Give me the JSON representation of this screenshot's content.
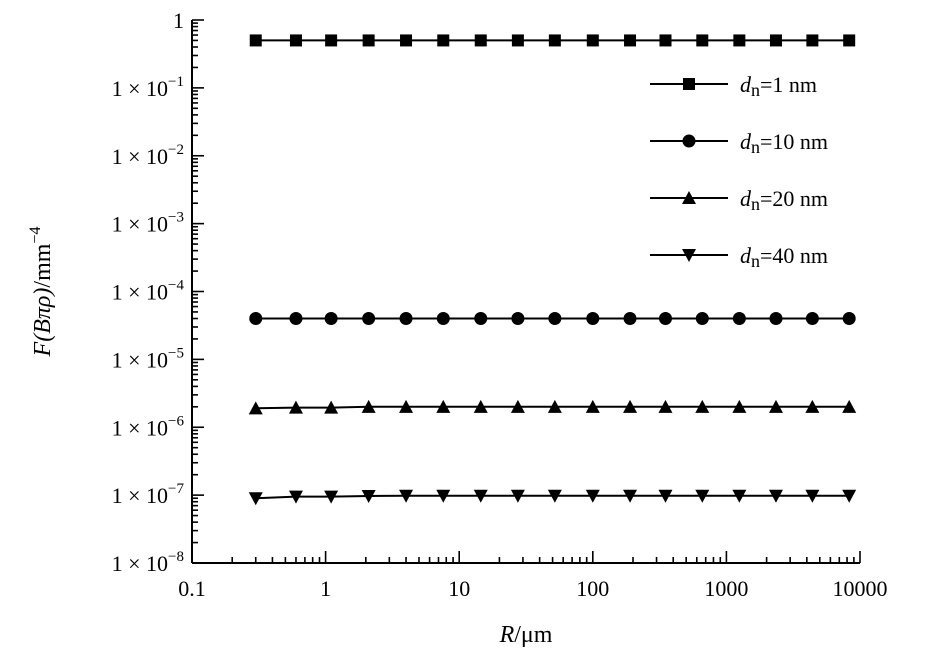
{
  "chart_data": {
    "type": "line",
    "xscale": "log",
    "yscale": "log",
    "xlim": [
      0.1,
      10000
    ],
    "ylim": [
      1e-08,
      1
    ],
    "xlabel": "R/μm",
    "ylabel": "F(Bπρ)/mm⁻⁴",
    "x_ticks": [
      {
        "value": 0.1,
        "label": "0.1"
      },
      {
        "value": 1,
        "label": "1"
      },
      {
        "value": 10,
        "label": "10"
      },
      {
        "value": 100,
        "label": "100"
      },
      {
        "value": 1000,
        "label": "1000"
      },
      {
        "value": 10000,
        "label": "10000"
      }
    ],
    "y_ticks": [
      {
        "value": 1,
        "mant": "1",
        "exp": ""
      },
      {
        "value": 0.1,
        "mant": "1 × 10",
        "exp": "−1"
      },
      {
        "value": 0.01,
        "mant": "1 × 10",
        "exp": "−2"
      },
      {
        "value": 0.001,
        "mant": "1 × 10",
        "exp": "−3"
      },
      {
        "value": 0.0001,
        "mant": "1 × 10",
        "exp": "−4"
      },
      {
        "value": 1e-05,
        "mant": "1 × 10",
        "exp": "−5"
      },
      {
        "value": 1e-06,
        "mant": "1 × 10",
        "exp": "−6"
      },
      {
        "value": 1e-07,
        "mant": "1 × 10",
        "exp": "−7"
      },
      {
        "value": 1e-08,
        "mant": "1 × 10",
        "exp": "−8"
      }
    ],
    "x": [
      0.3,
      0.6,
      1.1,
      2.1,
      4,
      7.6,
      14.5,
      27.5,
      52,
      100,
      190,
      350,
      660,
      1250,
      2350,
      4400,
      8300
    ],
    "series": [
      {
        "name": "dn=1 nm",
        "marker": "square",
        "values": [
          0.5,
          0.5,
          0.5,
          0.5,
          0.5,
          0.5,
          0.5,
          0.5,
          0.5,
          0.5,
          0.5,
          0.5,
          0.5,
          0.5,
          0.5,
          0.5,
          0.5
        ]
      },
      {
        "name": "dn=10 nm",
        "marker": "circle",
        "values": [
          4e-05,
          4e-05,
          4e-05,
          4e-05,
          4e-05,
          4e-05,
          4e-05,
          4e-05,
          4e-05,
          4e-05,
          4e-05,
          4e-05,
          4e-05,
          4e-05,
          4e-05,
          4e-05,
          4e-05
        ]
      },
      {
        "name": "dn=20 nm",
        "marker": "triangle-up",
        "values": [
          1.9e-06,
          1.95e-06,
          1.95e-06,
          2e-06,
          2e-06,
          2e-06,
          2e-06,
          2e-06,
          2e-06,
          2e-06,
          2e-06,
          2e-06,
          2e-06,
          2e-06,
          2e-06,
          2e-06,
          2e-06
        ]
      },
      {
        "name": "dn=40 nm",
        "marker": "triangle-down",
        "values": [
          9e-08,
          9.5e-08,
          9.5e-08,
          9.7e-08,
          9.8e-08,
          9.8e-08,
          9.8e-08,
          9.8e-08,
          9.8e-08,
          9.8e-08,
          9.8e-08,
          9.8e-08,
          9.8e-08,
          9.8e-08,
          9.8e-08,
          9.8e-08,
          9.8e-08
        ]
      }
    ],
    "legend": {
      "position": "top-right",
      "entries": [
        {
          "prefix": "d",
          "sub": "n",
          "suffix": "=1 nm",
          "marker": "square"
        },
        {
          "prefix": "d",
          "sub": "n",
          "suffix": "=10 nm",
          "marker": "circle"
        },
        {
          "prefix": "d",
          "sub": "n",
          "suffix": "=20 nm",
          "marker": "triangle-up"
        },
        {
          "prefix": "d",
          "sub": "n",
          "suffix": "=40 nm",
          "marker": "triangle-down"
        }
      ]
    },
    "axis_label_parts": {
      "x": {
        "var": "R",
        "unit": "/μm"
      },
      "y": {
        "var": "F",
        "paren": "(Bπρ)",
        "unit": "/mm",
        "exp": "−4"
      }
    },
    "grid": false
  }
}
